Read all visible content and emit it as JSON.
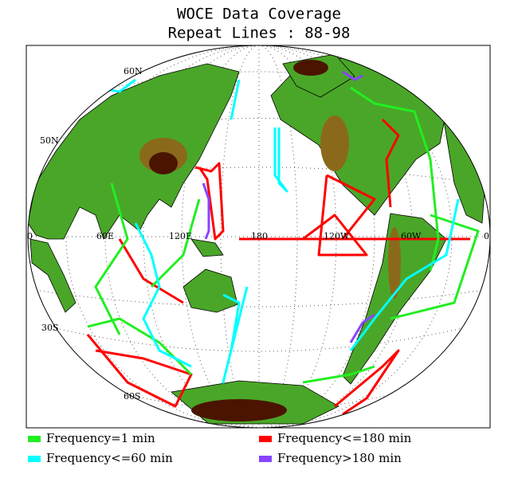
{
  "title": [
    "WOCE Data Coverage",
    "Repeat Lines : 88-98"
  ],
  "map": {
    "latitude_labels": [
      "60N",
      "50N",
      "30S",
      "60S"
    ],
    "longitude_labels": [
      "0",
      "60E",
      "120E",
      "180",
      "120W",
      "60W",
      "0"
    ]
  },
  "legend": [
    {
      "label": "Frequency=1 min",
      "color": "#22ee22"
    },
    {
      "label": "Frequency<=60 min",
      "color": "#00ffff"
    },
    {
      "label": "Frequency<=180 min",
      "color": "#ff0000"
    },
    {
      "label": "Frequency>180 min",
      "color": "#8844ff"
    }
  ]
}
